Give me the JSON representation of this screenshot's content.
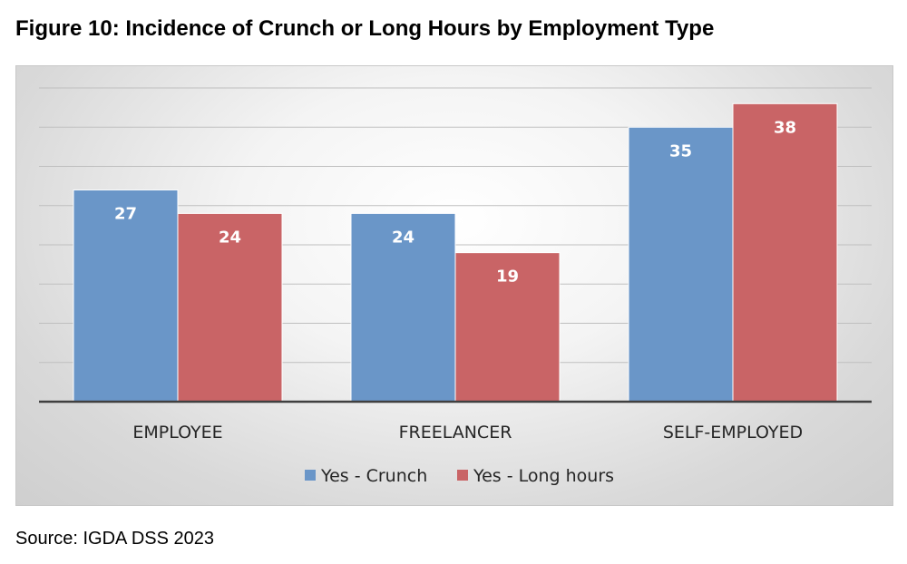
{
  "figure": {
    "title": "Figure 10: Incidence of Crunch or Long Hours by Employment Type",
    "source": "Source: IGDA DSS 2023"
  },
  "chart_data": {
    "type": "bar",
    "title": "Figure 10: Incidence of Crunch or Long Hours by Employment Type",
    "categories": [
      "EMPLOYEE",
      "FREELANCER",
      "SELF-EMPLOYED"
    ],
    "series": [
      {
        "name": "Yes - Crunch",
        "values": [
          27,
          24,
          35
        ],
        "color": "#6a96c8"
      },
      {
        "name": "Yes - Long hours",
        "values": [
          24,
          19,
          38
        ],
        "color": "#c96466"
      }
    ],
    "xlabel": "",
    "ylabel": "",
    "ylim": [
      0,
      40
    ],
    "grid": true,
    "legend": "bottom-center",
    "data_labels": true
  }
}
